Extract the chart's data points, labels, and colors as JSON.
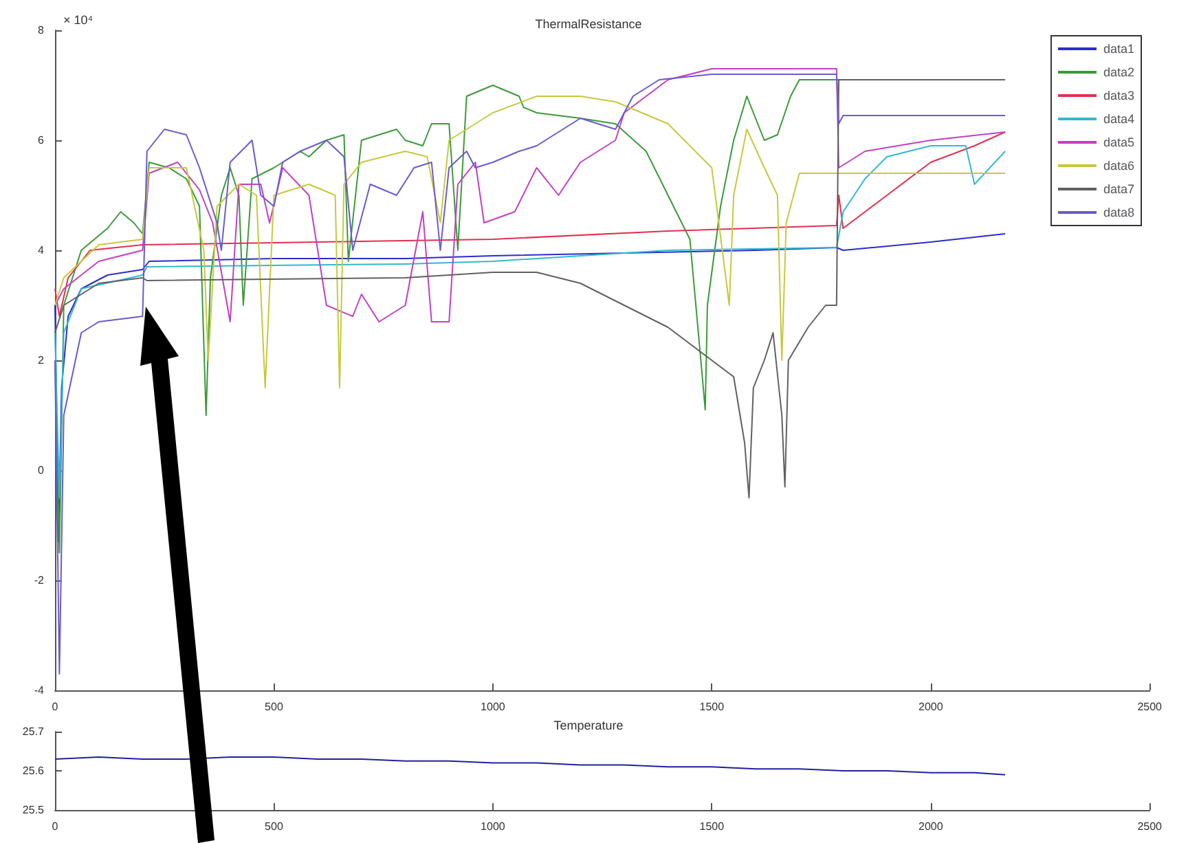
{
  "chart_data": [
    {
      "type": "line",
      "title": "ThermalResistance",
      "annotations": [
        "× 10⁴"
      ],
      "xlim": [
        0,
        2500
      ],
      "xticks": [
        0,
        500,
        1000,
        1500,
        2000,
        2500
      ],
      "ylim": [
        -4,
        8
      ],
      "yticks": [
        -4,
        -2,
        0,
        2,
        4,
        6,
        8
      ],
      "grid": false,
      "legend": "top right",
      "marker": "none",
      "line_style": "solid",
      "series": [
        {
          "name": "data1",
          "color": "#2b2bd0",
          "x": [
            0,
            8,
            15,
            30,
            60,
            120,
            200,
            215,
            500,
            800,
            1000,
            1300,
            1600,
            1785,
            1800,
            2000,
            2170
          ],
          "values": [
            3.0,
            -1.3,
            1.5,
            2.8,
            3.3,
            3.55,
            3.65,
            3.8,
            3.85,
            3.85,
            3.9,
            3.95,
            4.0,
            4.05,
            4.0,
            4.15,
            4.3
          ]
        },
        {
          "name": "data2",
          "color": "#3a9a3a",
          "x": [
            0,
            10,
            20,
            60,
            120,
            150,
            180,
            200,
            215,
            260,
            300,
            330,
            345,
            355,
            380,
            400,
            420,
            430,
            450,
            500,
            560,
            580,
            620,
            660,
            670,
            700,
            780,
            800,
            840,
            860,
            900,
            920,
            940,
            1000,
            1060,
            1070,
            1100,
            1200,
            1280,
            1350,
            1400,
            1450,
            1475,
            1485,
            1490,
            1520,
            1550,
            1580,
            1620,
            1650,
            1680,
            1700,
            1785,
            2170
          ],
          "values": [
            2.0,
            -1.5,
            3.0,
            4.0,
            4.4,
            4.7,
            4.5,
            4.3,
            5.6,
            5.5,
            5.3,
            4.8,
            1.0,
            3.5,
            5.0,
            5.5,
            5.0,
            3.0,
            5.3,
            5.5,
            5.8,
            5.7,
            6.0,
            6.1,
            3.8,
            6.0,
            6.2,
            6.0,
            5.9,
            6.3,
            6.3,
            4.0,
            6.8,
            7.0,
            6.8,
            6.6,
            6.5,
            6.4,
            6.3,
            5.8,
            5.0,
            4.2,
            2.0,
            1.1,
            3.0,
            4.8,
            6.0,
            6.8,
            6.0,
            6.1,
            6.8,
            7.1,
            7.1,
            7.1
          ]
        },
        {
          "name": "data3",
          "color": "#e03050",
          "x": [
            0,
            10,
            30,
            80,
            200,
            600,
            1000,
            1400,
            1785,
            1790,
            1800,
            1850,
            1900,
            2000,
            2100,
            2170
          ],
          "values": [
            3.3,
            2.8,
            3.5,
            4.0,
            4.1,
            4.15,
            4.2,
            4.35,
            4.45,
            5.0,
            4.4,
            4.7,
            5.0,
            5.6,
            5.9,
            6.15
          ]
        },
        {
          "name": "data4",
          "color": "#30b8d0",
          "x": [
            0,
            10,
            20,
            60,
            200,
            210,
            800,
            1000,
            1400,
            1785,
            1800,
            1850,
            1900,
            2000,
            2080,
            2100,
            2170
          ],
          "values": [
            2.5,
            -0.5,
            2.5,
            3.3,
            3.55,
            3.7,
            3.75,
            3.8,
            4.0,
            4.05,
            4.7,
            5.3,
            5.7,
            5.9,
            5.9,
            5.2,
            5.8
          ]
        },
        {
          "name": "data5",
          "color": "#c040c0",
          "x": [
            0,
            20,
            100,
            200,
            215,
            280,
            330,
            360,
            400,
            420,
            470,
            490,
            520,
            580,
            620,
            680,
            700,
            740,
            800,
            840,
            860,
            900,
            920,
            960,
            980,
            1050,
            1100,
            1150,
            1200,
            1280,
            1300,
            1400,
            1500,
            1785,
            1790,
            1850,
            2000,
            2170
          ],
          "values": [
            3.0,
            3.3,
            3.8,
            4.0,
            5.4,
            5.6,
            5.1,
            4.5,
            2.7,
            5.2,
            5.2,
            4.5,
            5.5,
            5.0,
            3.0,
            2.8,
            3.2,
            2.7,
            3.0,
            4.7,
            2.7,
            2.7,
            5.2,
            5.6,
            4.5,
            4.7,
            5.5,
            5.0,
            5.6,
            6.0,
            6.5,
            7.1,
            7.3,
            7.3,
            5.5,
            5.8,
            6.0,
            6.15
          ]
        },
        {
          "name": "data6",
          "color": "#c8c83c",
          "x": [
            0,
            20,
            100,
            200,
            215,
            300,
            340,
            350,
            370,
            420,
            460,
            480,
            500,
            580,
            640,
            650,
            660,
            700,
            800,
            850,
            880,
            900,
            960,
            1000,
            1100,
            1200,
            1280,
            1400,
            1500,
            1540,
            1550,
            1580,
            1620,
            1650,
            1660,
            1670,
            1700,
            2170
          ],
          "values": [
            3.0,
            3.5,
            4.1,
            4.2,
            5.5,
            5.5,
            4.0,
            2.0,
            4.8,
            5.2,
            5.0,
            1.5,
            5.0,
            5.2,
            5.0,
            1.5,
            5.2,
            5.6,
            5.8,
            5.7,
            4.5,
            6.0,
            6.3,
            6.5,
            6.8,
            6.8,
            6.7,
            6.3,
            5.5,
            3.0,
            5.0,
            6.2,
            5.5,
            5.0,
            2.0,
            4.5,
            5.4,
            5.4
          ]
        },
        {
          "name": "data7",
          "color": "#606060",
          "x": [
            0,
            20,
            100,
            200,
            210,
            800,
            1000,
            1100,
            1200,
            1300,
            1400,
            1500,
            1550,
            1575,
            1585,
            1595,
            1620,
            1640,
            1660,
            1667,
            1675,
            1720,
            1760,
            1785,
            1790,
            2170
          ],
          "values": [
            2.5,
            3.0,
            3.4,
            3.5,
            3.45,
            3.5,
            3.6,
            3.6,
            3.4,
            3.0,
            2.6,
            2.0,
            1.7,
            0.5,
            -0.5,
            1.5,
            2.0,
            2.5,
            1.0,
            -0.3,
            2.0,
            2.6,
            3.0,
            3.0,
            7.1,
            7.1
          ]
        },
        {
          "name": "data8",
          "color": "#6a5acd",
          "x": [
            0,
            10,
            20,
            60,
            100,
            200,
            210,
            250,
            300,
            330,
            370,
            380,
            400,
            450,
            470,
            500,
            520,
            560,
            620,
            660,
            680,
            720,
            780,
            820,
            860,
            880,
            900,
            940,
            960,
            1000,
            1060,
            1100,
            1200,
            1280,
            1320,
            1380,
            1500,
            1785,
            1790,
            1800,
            2170
          ],
          "values": [
            2.0,
            -3.7,
            1.0,
            2.5,
            2.7,
            2.8,
            5.8,
            6.2,
            6.1,
            5.5,
            4.5,
            4.0,
            5.6,
            6.0,
            5.0,
            4.8,
            5.6,
            5.8,
            6.0,
            5.7,
            4.0,
            5.2,
            5.0,
            5.5,
            5.6,
            4.0,
            5.5,
            5.8,
            5.5,
            5.6,
            5.8,
            5.9,
            6.4,
            6.2,
            6.8,
            7.1,
            7.2,
            7.2,
            6.3,
            6.45,
            6.45
          ]
        }
      ]
    },
    {
      "type": "line",
      "title": "Temperature",
      "xlim": [
        0,
        2500
      ],
      "xticks": [
        0,
        500,
        1000,
        1500,
        2000,
        2500
      ],
      "ylim": [
        25.5,
        25.7
      ],
      "yticks": [
        25.5,
        25.6,
        25.7
      ],
      "grid": false,
      "legend": false,
      "marker": "none",
      "line_style": "solid",
      "series": [
        {
          "color": "#2020a0",
          "x": [
            0,
            100,
            200,
            300,
            400,
            500,
            600,
            700,
            800,
            900,
            1000,
            1100,
            1200,
            1300,
            1400,
            1500,
            1600,
            1700,
            1800,
            1900,
            2000,
            2100,
            2170
          ],
          "values": [
            25.63,
            25.635,
            25.63,
            25.63,
            25.635,
            25.635,
            25.63,
            25.63,
            25.625,
            25.625,
            25.62,
            25.62,
            25.615,
            25.615,
            25.61,
            25.61,
            25.605,
            25.605,
            25.6,
            25.6,
            25.595,
            25.595,
            25.59
          ]
        }
      ]
    }
  ]
}
